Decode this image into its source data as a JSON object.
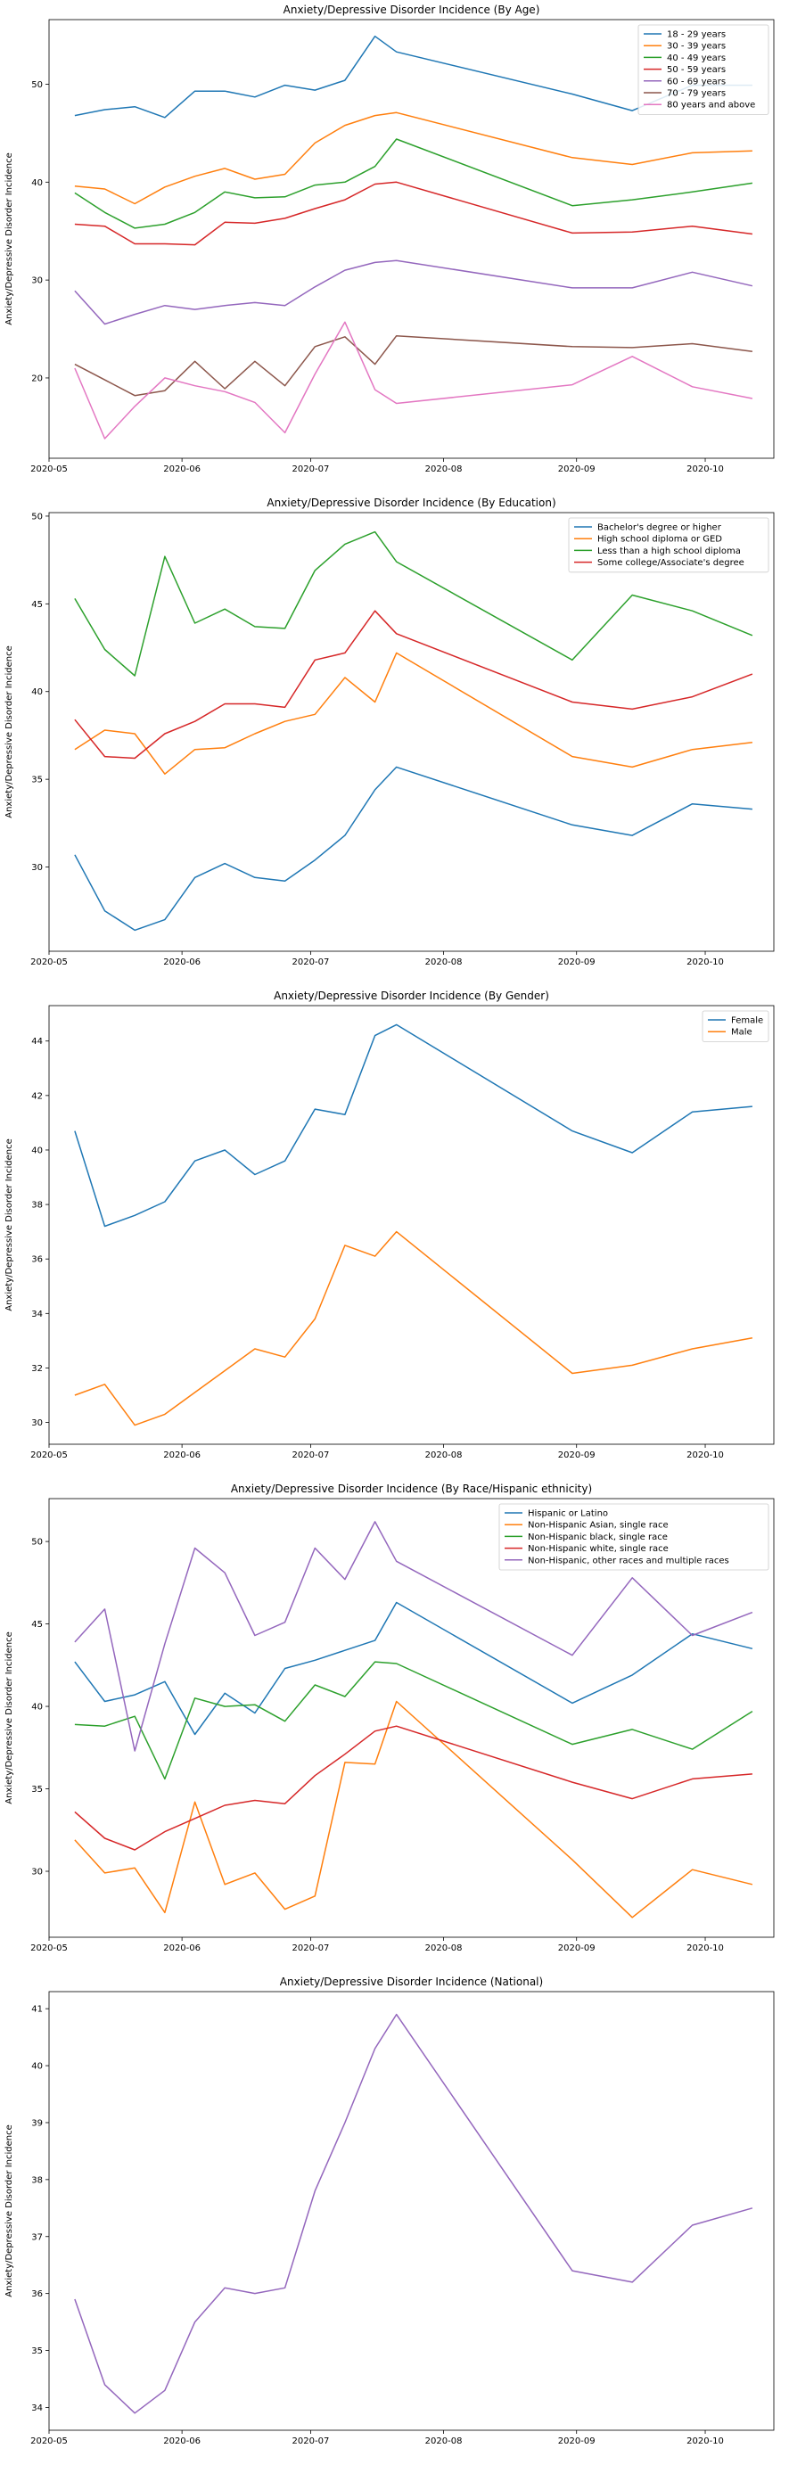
{
  "colors": [
    "#1f77b4",
    "#ff7f0e",
    "#2ca02c",
    "#d62728",
    "#9467bd",
    "#8c564b",
    "#e377c2"
  ],
  "chart_data": [
    {
      "type": "line",
      "title": "Anxiety/Depressive Disorder Incidence (By Age)",
      "xlabel": "",
      "ylabel": "Anxiety/Depressive Disorder Incidence",
      "x": [
        "2020-05-07",
        "2020-05-14",
        "2020-05-21",
        "2020-05-28",
        "2020-06-04",
        "2020-06-11",
        "2020-06-18",
        "2020-06-25",
        "2020-07-02",
        "2020-07-09",
        "2020-07-16",
        "2020-07-21",
        "2020-08-31",
        "2020-09-14",
        "2020-09-28",
        "2020-10-12"
      ],
      "xlim": [
        "2020-05-01",
        "2020-10-17"
      ],
      "xticks": [
        "2020-05-01",
        "2020-06-01",
        "2020-07-01",
        "2020-08-01",
        "2020-09-01",
        "2020-10-01"
      ],
      "xtick_labels": [
        "2020-05",
        "2020-06",
        "2020-07",
        "2020-08",
        "2020-09",
        "2020-10"
      ],
      "ylim": [
        11.8,
        56.6
      ],
      "yticks": [
        20,
        30,
        40,
        50
      ],
      "legend": "top-right",
      "grid": false,
      "series": [
        {
          "name": "18 - 29 years",
          "values": [
            46.8,
            47.4,
            47.7,
            46.6,
            49.3,
            49.3,
            48.7,
            49.9,
            49.4,
            50.4,
            54.9,
            53.3,
            49.0,
            47.3,
            49.9,
            49.9
          ]
        },
        {
          "name": "30 - 39 years",
          "values": [
            39.6,
            39.3,
            37.8,
            39.5,
            40.6,
            41.4,
            40.3,
            40.8,
            44.0,
            45.8,
            46.8,
            47.1,
            42.5,
            41.8,
            43.0,
            43.2
          ]
        },
        {
          "name": "40 - 49 years",
          "values": [
            38.9,
            36.9,
            35.3,
            35.7,
            36.9,
            39.0,
            38.4,
            38.5,
            39.7,
            40.0,
            41.6,
            44.4,
            37.6,
            38.2,
            39.0,
            39.9
          ]
        },
        {
          "name": "50 - 59 years",
          "values": [
            35.7,
            35.5,
            33.7,
            33.7,
            33.6,
            35.9,
            35.8,
            36.3,
            37.3,
            38.2,
            39.8,
            40.0,
            34.8,
            34.9,
            35.5,
            34.7
          ]
        },
        {
          "name": "60 - 69 years",
          "values": [
            28.9,
            25.5,
            26.5,
            27.4,
            27.0,
            27.4,
            27.7,
            27.4,
            29.3,
            31.0,
            31.8,
            32.0,
            29.2,
            29.2,
            30.8,
            29.4
          ]
        },
        {
          "name": "70 - 79 years",
          "values": [
            21.4,
            19.8,
            18.2,
            18.7,
            21.7,
            18.9,
            21.7,
            19.2,
            23.2,
            24.2,
            21.4,
            24.3,
            23.2,
            23.1,
            23.5,
            22.7
          ]
        },
        {
          "name": "80 years and above",
          "values": [
            21.0,
            13.8,
            17.1,
            20.0,
            19.2,
            18.6,
            17.5,
            14.4,
            20.4,
            25.7,
            18.8,
            17.4,
            19.3,
            22.2,
            19.1,
            17.9
          ]
        }
      ]
    },
    {
      "type": "line",
      "title": "Anxiety/Depressive Disorder Incidence (By Education)",
      "xlabel": "",
      "ylabel": "Anxiety/Depressive Disorder Incidence",
      "x": [
        "2020-05-07",
        "2020-05-14",
        "2020-05-21",
        "2020-05-28",
        "2020-06-04",
        "2020-06-11",
        "2020-06-18",
        "2020-06-25",
        "2020-07-02",
        "2020-07-09",
        "2020-07-16",
        "2020-07-21",
        "2020-08-31",
        "2020-09-14",
        "2020-09-28",
        "2020-10-12"
      ],
      "xlim": [
        "2020-05-01",
        "2020-10-17"
      ],
      "xticks": [
        "2020-05-01",
        "2020-06-01",
        "2020-07-01",
        "2020-08-01",
        "2020-09-01",
        "2020-10-01"
      ],
      "xtick_labels": [
        "2020-05",
        "2020-06",
        "2020-07",
        "2020-08",
        "2020-09",
        "2020-10"
      ],
      "ylim": [
        25.2,
        50.2
      ],
      "yticks": [
        30,
        35,
        40,
        45,
        50
      ],
      "legend": "top-right",
      "grid": false,
      "series": [
        {
          "name": "Bachelor's degree or higher",
          "values": [
            30.7,
            27.5,
            26.4,
            27.0,
            29.4,
            30.2,
            29.4,
            29.2,
            30.4,
            31.8,
            34.4,
            35.7,
            32.4,
            31.8,
            33.6,
            33.3
          ]
        },
        {
          "name": "High school diploma or GED",
          "values": [
            36.7,
            37.8,
            37.6,
            35.3,
            36.7,
            36.8,
            37.6,
            38.3,
            38.7,
            40.8,
            39.4,
            42.2,
            36.3,
            35.7,
            36.7,
            37.1
          ]
        },
        {
          "name": "Less than a high school diploma",
          "values": [
            45.3,
            42.4,
            40.9,
            47.7,
            43.9,
            44.7,
            43.7,
            43.6,
            46.9,
            48.4,
            49.1,
            47.4,
            41.8,
            45.5,
            44.6,
            43.2
          ]
        },
        {
          "name": "Some college/Associate's degree",
          "values": [
            38.4,
            36.3,
            36.2,
            37.6,
            38.3,
            39.3,
            39.3,
            39.1,
            41.8,
            42.2,
            44.6,
            43.3,
            39.4,
            39.0,
            39.7,
            41.0
          ]
        }
      ]
    },
    {
      "type": "line",
      "title": "Anxiety/Depressive Disorder Incidence (By Gender)",
      "xlabel": "",
      "ylabel": "Anxiety/Depressive Disorder Incidence",
      "x": [
        "2020-05-07",
        "2020-05-14",
        "2020-05-21",
        "2020-05-28",
        "2020-06-04",
        "2020-06-11",
        "2020-06-18",
        "2020-06-25",
        "2020-07-02",
        "2020-07-09",
        "2020-07-16",
        "2020-07-21",
        "2020-08-31",
        "2020-09-14",
        "2020-09-28",
        "2020-10-12"
      ],
      "xlim": [
        "2020-05-01",
        "2020-10-17"
      ],
      "xticks": [
        "2020-05-01",
        "2020-06-01",
        "2020-07-01",
        "2020-08-01",
        "2020-09-01",
        "2020-10-01"
      ],
      "xtick_labels": [
        "2020-05",
        "2020-06",
        "2020-07",
        "2020-08",
        "2020-09",
        "2020-10"
      ],
      "ylim": [
        29.2,
        45.3
      ],
      "yticks": [
        30,
        32,
        34,
        36,
        38,
        40,
        42,
        44
      ],
      "legend": "top-right",
      "grid": false,
      "series": [
        {
          "name": "Female",
          "values": [
            40.7,
            37.2,
            37.6,
            38.1,
            39.6,
            40.0,
            39.1,
            39.6,
            41.5,
            41.3,
            44.2,
            44.6,
            40.7,
            39.9,
            41.4,
            41.6
          ]
        },
        {
          "name": "Male",
          "values": [
            31.0,
            31.4,
            29.9,
            30.3,
            31.1,
            31.9,
            32.7,
            32.4,
            33.8,
            36.5,
            36.1,
            37.0,
            31.8,
            32.1,
            32.7,
            33.1
          ]
        }
      ]
    },
    {
      "type": "line",
      "title": "Anxiety/Depressive Disorder Incidence (By Race/Hispanic ethnicity)",
      "xlabel": "",
      "ylabel": "Anxiety/Depressive Disorder Incidence",
      "x": [
        "2020-05-07",
        "2020-05-14",
        "2020-05-21",
        "2020-05-28",
        "2020-06-04",
        "2020-06-11",
        "2020-06-18",
        "2020-06-25",
        "2020-07-02",
        "2020-07-09",
        "2020-07-16",
        "2020-07-21",
        "2020-08-31",
        "2020-09-14",
        "2020-09-28",
        "2020-10-12"
      ],
      "xlim": [
        "2020-05-01",
        "2020-10-17"
      ],
      "xticks": [
        "2020-05-01",
        "2020-06-01",
        "2020-07-01",
        "2020-08-01",
        "2020-09-01",
        "2020-10-01"
      ],
      "xtick_labels": [
        "2020-05",
        "2020-06",
        "2020-07",
        "2020-08",
        "2020-09",
        "2020-10"
      ],
      "ylim": [
        26.0,
        52.6
      ],
      "yticks": [
        30,
        35,
        40,
        45,
        50
      ],
      "legend": "top-right",
      "grid": false,
      "series": [
        {
          "name": "Hispanic or Latino",
          "values": [
            42.7,
            40.3,
            40.7,
            41.5,
            38.3,
            40.8,
            39.6,
            42.3,
            42.8,
            43.4,
            44.0,
            46.3,
            40.2,
            41.9,
            44.4,
            43.5
          ]
        },
        {
          "name": "Non-Hispanic Asian, single race",
          "values": [
            31.9,
            29.9,
            30.2,
            27.5,
            34.2,
            29.2,
            29.9,
            27.7,
            28.5,
            36.6,
            36.5,
            40.3,
            30.7,
            27.2,
            30.1,
            29.2
          ]
        },
        {
          "name": "Non-Hispanic black, single race",
          "values": [
            38.9,
            38.8,
            39.4,
            35.6,
            40.5,
            40.0,
            40.1,
            39.1,
            41.3,
            40.6,
            42.7,
            42.6,
            37.7,
            38.6,
            37.4,
            39.7
          ]
        },
        {
          "name": "Non-Hispanic white, single race",
          "values": [
            33.6,
            32.0,
            31.3,
            32.4,
            33.2,
            34.0,
            34.3,
            34.1,
            35.8,
            37.1,
            38.5,
            38.8,
            35.4,
            34.4,
            35.6,
            35.9
          ]
        },
        {
          "name": "Non-Hispanic, other races and multiple races",
          "values": [
            43.9,
            45.9,
            37.3,
            43.8,
            49.6,
            48.1,
            44.3,
            45.1,
            49.6,
            47.7,
            51.2,
            48.8,
            43.1,
            47.8,
            44.3,
            45.7
          ]
        }
      ]
    },
    {
      "type": "line",
      "title": "Anxiety/Depressive Disorder Incidence (National)",
      "xlabel": "",
      "ylabel": "Anxiety/Depressive Disorder Incidence",
      "x": [
        "2020-05-07",
        "2020-05-14",
        "2020-05-21",
        "2020-05-28",
        "2020-06-04",
        "2020-06-11",
        "2020-06-18",
        "2020-06-25",
        "2020-07-02",
        "2020-07-09",
        "2020-07-16",
        "2020-07-21",
        "2020-08-31",
        "2020-09-14",
        "2020-09-28",
        "2020-10-12"
      ],
      "xlim": [
        "2020-05-01",
        "2020-10-17"
      ],
      "xticks": [
        "2020-05-01",
        "2020-06-01",
        "2020-07-01",
        "2020-08-01",
        "2020-09-01",
        "2020-10-01"
      ],
      "xtick_labels": [
        "2020-05",
        "2020-06",
        "2020-07",
        "2020-08",
        "2020-09",
        "2020-10"
      ],
      "ylim": [
        33.6,
        41.3
      ],
      "yticks": [
        34,
        35,
        36,
        37,
        38,
        39,
        40,
        41
      ],
      "legend": "none",
      "grid": false,
      "series": [
        {
          "name": "",
          "color_index": 4,
          "values": [
            35.9,
            34.4,
            33.9,
            34.3,
            35.5,
            36.1,
            36.0,
            36.1,
            37.8,
            39.0,
            40.3,
            40.9,
            36.4,
            36.2,
            37.2,
            37.5
          ]
        }
      ]
    }
  ]
}
